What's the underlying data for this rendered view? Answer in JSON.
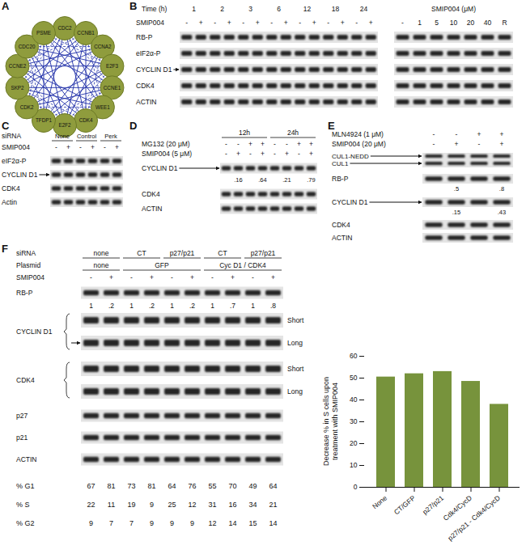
{
  "chart_data": {
    "type": "bar",
    "y_label": "Decrease % in S cells upon treatment with SMIP004",
    "categories": [
      "None",
      "CT/GFP",
      "p27/p21",
      "Cdk4/CycD",
      "p27/p21 - Cdk4/CycD"
    ],
    "values": [
      50.5,
      52,
      53,
      48.5,
      38
    ],
    "color": "#77933c",
    "ylim": [
      0,
      60
    ],
    "yticks": [
      0,
      10,
      20,
      30,
      40,
      50,
      60
    ]
  },
  "figure": {
    "panel_a": {
      "label": "A",
      "nodes": [
        "CDC2",
        "CCNB1",
        "CCNA2",
        "E2F3",
        "CCNE1",
        "WEE1",
        "CDK4",
        "E2F2",
        "TFDP1",
        "CDK2",
        "SKP2",
        "CCNE2",
        "CDC20",
        "PSME"
      ]
    },
    "panel_b": {
      "label": "B",
      "time_label": "Time (h)",
      "times": [
        "1",
        "2",
        "3",
        "6",
        "12",
        "18",
        "24"
      ],
      "treatment": "SMIP004",
      "marks": [
        "-",
        "+"
      ],
      "rows": [
        {
          "label": "RB-P",
          "arrow": false
        },
        {
          "label": "eIF2α-P",
          "arrow": false
        },
        {
          "label": "CYCLIN D1",
          "arrow": true
        },
        {
          "label": "CDK4",
          "arrow": false
        },
        {
          "label": "ACTIN",
          "arrow": false
        }
      ],
      "dose_label": "SMIP004 (μM)",
      "doses": [
        "-",
        "1",
        "5",
        "10",
        "20",
        "40",
        "R"
      ]
    },
    "panel_c": {
      "label": "C",
      "group_label": "siRNA",
      "groups": [
        "None",
        "Control",
        "Perk"
      ],
      "treatment": "SMIP004",
      "marks": [
        "-",
        "+"
      ],
      "rows": [
        {
          "label": "eIF2α-P",
          "arrow": false
        },
        {
          "label": "CYCLIN D1",
          "arrow": true
        },
        {
          "label": "CDK4",
          "arrow": false
        },
        {
          "label": "Actin",
          "arrow": false
        }
      ]
    },
    "panel_d": {
      "label": "D",
      "groups": [
        "12h",
        "24h"
      ],
      "treatments": [
        {
          "label": "MG132 (20 μM)",
          "marks": [
            "-",
            "-",
            "+",
            "+",
            "-",
            "-",
            "+",
            "+"
          ]
        },
        {
          "label": "SMIP004 (5 μM)",
          "marks": [
            "-",
            "+",
            "-",
            "+",
            "-",
            "+",
            "-",
            "+"
          ]
        }
      ],
      "rows": [
        {
          "label": "CYCLIN D1",
          "arrow": true,
          "ratios": [
            null,
            ".16",
            null,
            ".64",
            null,
            ".21",
            null,
            ".79"
          ]
        },
        {
          "label": "CDK4",
          "arrow": false
        },
        {
          "label": "ACTIN",
          "arrow": false
        }
      ]
    },
    "panel_e": {
      "label": "E",
      "treatments": [
        {
          "label": "MLN4924 (1 μM)",
          "marks": [
            "-",
            "-",
            "+",
            "+"
          ]
        },
        {
          "label": "SMIP004 (20 μM)",
          "marks": [
            "-",
            "+",
            "-",
            "+"
          ]
        }
      ],
      "doublet": [
        "CUL1-NEDD",
        "CUL1"
      ],
      "rows": [
        {
          "label": "RB-P",
          "arrow": false,
          "ratios": [
            null,
            ".5",
            null,
            ".8"
          ]
        },
        {
          "label": "CYCLIN D1",
          "arrow": true,
          "ratios": [
            null,
            ".15",
            null,
            ".43"
          ]
        },
        {
          "label": "CDK4",
          "arrow": false
        },
        {
          "label": "ACTIN",
          "arrow": false
        }
      ]
    },
    "panel_f": {
      "label": "F",
      "sirna_label": "siRNA",
      "sirna_groups": [
        "none",
        "CT",
        "p27/p21",
        "CT",
        "p27/p21"
      ],
      "plasmid_label": "Plasmid",
      "plasmid_groups": [
        {
          "text": "none",
          "lanes": 2
        },
        {
          "text": "GFP",
          "lanes": 4
        },
        {
          "text": "Cyc D1 / CDK4",
          "lanes": 4
        }
      ],
      "treatment": "SMIP004",
      "marks": [
        "-",
        "+"
      ],
      "rb_p_ratios": [
        "1",
        ".2",
        "1",
        ".2",
        "1",
        ".2",
        "1",
        ".7",
        "1",
        ".8"
      ],
      "rows": [
        {
          "label": "RB-P",
          "arrow": false
        },
        {
          "label": "CYCLIN D1",
          "arrow": true,
          "exposures": [
            "Short",
            "Long"
          ]
        },
        {
          "label": "CDK4",
          "arrow": false,
          "exposures": [
            "Short",
            "Long"
          ]
        },
        {
          "label": "p27",
          "arrow": false
        },
        {
          "label": "p21",
          "arrow": false
        },
        {
          "label": "ACTIN",
          "arrow": false
        }
      ],
      "cycle": [
        {
          "label": "% G1",
          "values": [
            67,
            81,
            73,
            81,
            64,
            76,
            55,
            70,
            49,
            64
          ]
        },
        {
          "label": "% S",
          "values": [
            22,
            11,
            19,
            9,
            25,
            12,
            31,
            16,
            34,
            21
          ]
        },
        {
          "label": "% G2",
          "values": [
            9,
            7,
            7,
            9,
            9,
            9,
            12,
            14,
            15,
            14
          ]
        }
      ]
    }
  }
}
